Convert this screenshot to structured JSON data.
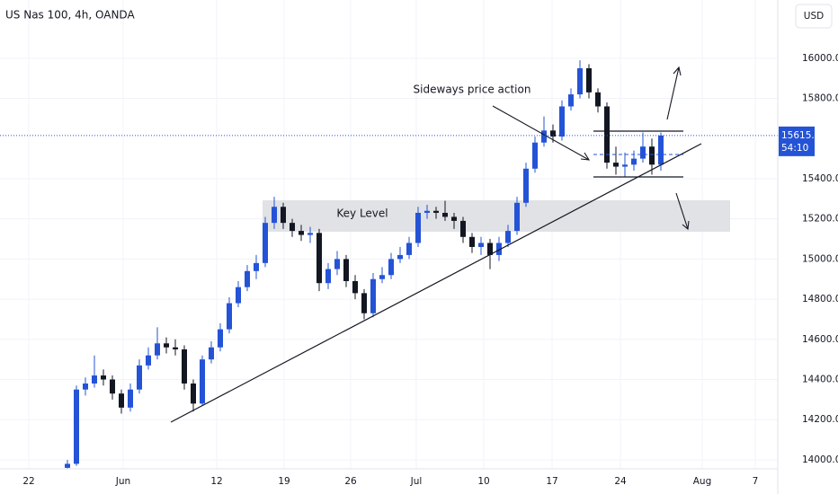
{
  "chart_data": {
    "type": "candlestick",
    "title": "US Nas 100, 4h, OANDA",
    "currency": "USD",
    "annotations": [
      "Sideways price action",
      "Key Level"
    ],
    "last_price": 15615.1,
    "countdown": "54:10",
    "up_color": "#2453d6",
    "down_color": "#131722",
    "xlim": [
      0,
      86.5
    ],
    "ylim": [
      13955,
      16290
    ],
    "xticks": [
      {
        "value": 3.2,
        "label": "22"
      },
      {
        "value": 13.7,
        "label": "Jun"
      },
      {
        "value": 24.1,
        "label": "12"
      },
      {
        "value": 31.6,
        "label": "19"
      },
      {
        "value": 39,
        "label": "26"
      },
      {
        "value": 46.3,
        "label": "Jul"
      },
      {
        "value": 53.8,
        "label": "10"
      },
      {
        "value": 61.4,
        "label": "17"
      },
      {
        "value": 69,
        "label": "24"
      },
      {
        "value": 78.1,
        "label": "Aug"
      },
      {
        "value": 84,
        "label": "7"
      }
    ],
    "yticks": [
      {
        "value": 14000,
        "label": "14000.0"
      },
      {
        "value": 14200,
        "label": "14200.0"
      },
      {
        "value": 14400,
        "label": "14400.0"
      },
      {
        "value": 14600,
        "label": "14600.0"
      },
      {
        "value": 14800,
        "label": "14800.0"
      },
      {
        "value": 15000,
        "label": "15000.0"
      },
      {
        "value": 15200,
        "label": "15200.0"
      },
      {
        "value": 15400,
        "label": "15400.0"
      },
      {
        "value": 15800,
        "label": "15800.0"
      },
      {
        "value": 16000,
        "label": "16000.0"
      }
    ],
    "x": [
      7.5,
      8.5,
      9.5,
      10.5,
      11.5,
      12.5,
      13.5,
      14.5,
      15.5,
      16.5,
      17.5,
      18.5,
      19.5,
      20.5,
      21.5,
      22.5,
      23.5,
      24.5,
      25.5,
      26.5,
      27.5,
      28.5,
      29.5,
      30.5,
      31.5,
      32.5,
      33.5,
      34.5,
      35.5,
      36.5,
      37.5,
      38.5,
      39.5,
      40.5,
      41.5,
      42.5,
      43.5,
      44.5,
      45.5,
      46.5,
      47.5,
      48.5,
      49.5,
      50.5,
      51.5,
      52.5,
      53.5,
      54.5,
      55.5,
      56.5,
      57.5,
      58.5,
      59.5,
      60.5,
      61.5,
      62.5,
      63.5,
      64.5,
      65.5,
      66.5,
      67.5,
      68.5,
      69.5,
      70.5,
      71.5,
      72.5,
      73.5
    ],
    "open": [
      13960,
      13980,
      14350,
      14380,
      14420,
      14400,
      14330,
      14260,
      14350,
      14470,
      14520,
      14580,
      14560,
      14550,
      14380,
      14280,
      14500,
      14560,
      14650,
      14780,
      14860,
      14940,
      14980,
      15180,
      15260,
      15180,
      15140,
      15120,
      15130,
      14880,
      14950,
      15000,
      14890,
      14830,
      14730,
      14900,
      14920,
      15000,
      15020,
      15080,
      15230,
      15240,
      15230,
      15210,
      15190,
      15110,
      15060,
      15080,
      15020,
      15080,
      15140,
      15280,
      15450,
      15580,
      15640,
      15610,
      15760,
      15820,
      15950,
      15830,
      15760,
      15480,
      15460,
      15470,
      15500,
      15560,
      15470
    ],
    "high": [
      14000,
      14370,
      14410,
      14520,
      14450,
      14420,
      14350,
      14380,
      14500,
      14560,
      14660,
      14610,
      14600,
      14570,
      14400,
      14520,
      14590,
      14680,
      14810,
      14890,
      14970,
      15020,
      15210,
      15310,
      15280,
      15200,
      15170,
      15160,
      15150,
      14980,
      15040,
      15020,
      14920,
      14850,
      14930,
      14960,
      15030,
      15060,
      15110,
      15260,
      15270,
      15260,
      15290,
      15230,
      15210,
      15130,
      15110,
      15100,
      15110,
      15170,
      15310,
      15480,
      15610,
      15710,
      15670,
      15790,
      15850,
      15990,
      15970,
      15850,
      15780,
      15560,
      15530,
      15540,
      15630,
      15600,
      15630
    ],
    "low": [
      13950,
      13970,
      14320,
      14360,
      14370,
      14300,
      14230,
      14240,
      14330,
      14450,
      14500,
      14530,
      14520,
      14350,
      14240,
      14270,
      14480,
      14540,
      14630,
      14760,
      14840,
      14900,
      14960,
      15150,
      15150,
      15110,
      15090,
      15080,
      14840,
      14850,
      14920,
      14860,
      14800,
      14700,
      14710,
      14880,
      14900,
      14980,
      15000,
      15060,
      15200,
      15200,
      15190,
      15150,
      15080,
      15030,
      15020,
      14950,
      14990,
      15060,
      15120,
      15260,
      15430,
      15560,
      15580,
      15590,
      15740,
      15800,
      15800,
      15730,
      15450,
      15420,
      15410,
      15440,
      15480,
      15420,
      15440
    ],
    "close": [
      13980,
      14350,
      14380,
      14420,
      14400,
      14330,
      14260,
      14350,
      14470,
      14520,
      14580,
      14560,
      14550,
      14380,
      14280,
      14500,
      14560,
      14650,
      14780,
      14860,
      14940,
      14980,
      15180,
      15260,
      15180,
      15140,
      15120,
      15130,
      14880,
      14950,
      15000,
      14890,
      14830,
      14730,
      14900,
      14920,
      15000,
      15020,
      15080,
      15230,
      15240,
      15230,
      15210,
      15190,
      15110,
      15060,
      15080,
      15020,
      15080,
      15140,
      15280,
      15450,
      15580,
      15640,
      15610,
      15760,
      15820,
      15950,
      15830,
      15760,
      15480,
      15460,
      15470,
      15500,
      15560,
      15470,
      15615
    ]
  }
}
